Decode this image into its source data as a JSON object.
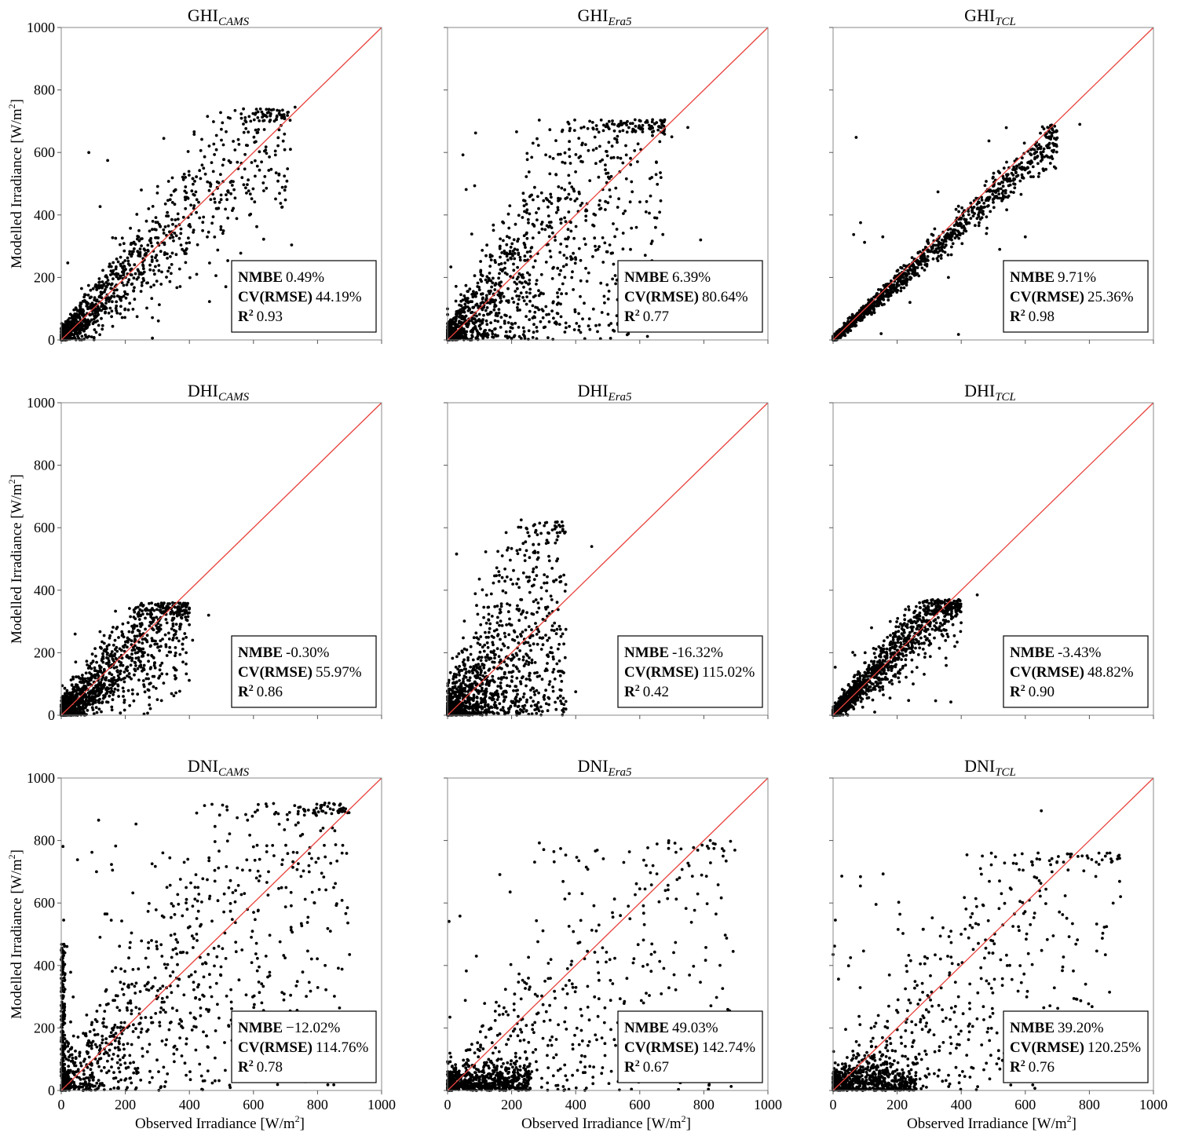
{
  "chart_data": [
    {
      "type": "scatter",
      "title_main": "GHI",
      "title_sub": "CAMS",
      "ylabel_pre": "Modelled Irradiance [W/m",
      "xlabel_pre": "",
      "ylabel_show": true,
      "xlabel_show": false,
      "xlim": [
        0,
        1000
      ],
      "ylim": [
        0,
        1000
      ],
      "ticks": [
        "0",
        "200",
        "400",
        "600",
        "800",
        "1000"
      ],
      "show_xticks": false,
      "show_yticks": true,
      "stats": {
        "nmbe_label": "NMBE",
        "nmbe": "0.49%",
        "cv_label": "CV(RMSE)",
        "cv": "44.19%",
        "r2_label": "R",
        "r2": "0.93"
      },
      "pattern": {
        "seed": 11,
        "n": 1100,
        "xmax": 720,
        "slope": 1.0,
        "noise": 0.22,
        "const": 18,
        "cap": 740,
        "outliers": 12
      },
      "points": [
        [
          320,
          645
        ],
        [
          730,
          745
        ],
        [
          700,
          490
        ],
        [
          520,
          390
        ],
        [
          460,
          345
        ],
        [
          300,
          470
        ],
        [
          250,
          480
        ]
      ]
    },
    {
      "type": "scatter",
      "title_main": "GHI",
      "title_sub": "Era5",
      "ylabel_show": false,
      "xlabel_show": false,
      "xlim": [
        0,
        1000
      ],
      "ylim": [
        0,
        1000
      ],
      "ticks": [
        "0",
        "200",
        "400",
        "600",
        "800",
        "1000"
      ],
      "show_xticks": false,
      "show_yticks": false,
      "stats": {
        "nmbe_label": "NMBE",
        "nmbe": "6.39%",
        "cv_label": "CV(RMSE)",
        "cv": "80.64%",
        "r2_label": "R",
        "r2": "0.77"
      },
      "pattern": {
        "seed": 22,
        "n": 1300,
        "xmax": 680,
        "slope": 0.95,
        "noise": 0.55,
        "const": 30,
        "cap": 705,
        "outliers": 20
      },
      "points": [
        [
          640,
          705
        ],
        [
          750,
          680
        ],
        [
          700,
          650
        ],
        [
          790,
          320
        ],
        [
          350,
          50
        ],
        [
          440,
          45
        ],
        [
          380,
          610
        ]
      ]
    },
    {
      "type": "scatter",
      "title_main": "GHI",
      "title_sub": "TCL",
      "ylabel_show": false,
      "xlabel_show": false,
      "xlim": [
        0,
        1000
      ],
      "ylim": [
        0,
        1000
      ],
      "ticks": [
        "0",
        "200",
        "400",
        "600",
        "800",
        "1000"
      ],
      "show_xticks": false,
      "show_yticks": false,
      "stats": {
        "nmbe_label": "NMBE",
        "nmbe": "9.71%",
        "cv_label": "CV(RMSE)",
        "cv": "25.36%",
        "r2_label": "R",
        "r2": "0.98"
      },
      "pattern": {
        "seed": 33,
        "n": 1200,
        "xmax": 700,
        "slope": 0.92,
        "noise": 0.05,
        "const": 6,
        "cap": 690,
        "outliers": 12
      },
      "points": [
        [
          770,
          690
        ],
        [
          520,
          290
        ],
        [
          600,
          330
        ],
        [
          400,
          390
        ],
        [
          150,
          20
        ],
        [
          240,
          120
        ],
        [
          360,
          200
        ]
      ]
    },
    {
      "type": "scatter",
      "title_main": "DHI",
      "title_sub": "CAMS",
      "ylabel_pre": "Modelled Irradiance [W/m",
      "ylabel_show": true,
      "xlabel_show": false,
      "xlim": [
        0,
        1000
      ],
      "ylim": [
        0,
        1000
      ],
      "ticks": [
        "0",
        "200",
        "400",
        "600",
        "800",
        "1000"
      ],
      "show_xticks": false,
      "show_yticks": true,
      "stats": {
        "nmbe_label": "NMBE",
        "nmbe": "-0.30%",
        "cv_label": "CV(RMSE)",
        "cv": "55.97%",
        "r2_label": "R",
        "r2": "0.86"
      },
      "pattern": {
        "seed": 44,
        "n": 1300,
        "xmax": 400,
        "slope": 0.9,
        "noise": 0.3,
        "const": 20,
        "cap": 360,
        "outliers": 8
      },
      "points": [
        [
          460,
          320
        ],
        [
          410,
          240
        ],
        [
          390,
          200
        ],
        [
          380,
          170
        ],
        [
          300,
          50
        ]
      ]
    },
    {
      "type": "scatter",
      "title_main": "DHI",
      "title_sub": "Era5",
      "ylabel_show": false,
      "xlabel_show": false,
      "xlim": [
        0,
        1000
      ],
      "ylim": [
        0,
        1000
      ],
      "ticks": [
        "0",
        "200",
        "400",
        "600",
        "800",
        "1000"
      ],
      "show_xticks": false,
      "show_yticks": false,
      "stats": {
        "nmbe_label": "NMBE",
        "nmbe": "-16.32%",
        "cv_label": "CV(RMSE)",
        "cv": "115.02%",
        "r2_label": "R",
        "r2": "0.42"
      },
      "pattern": {
        "seed": 55,
        "n": 1300,
        "xmax": 370,
        "slope": 0.9,
        "noise": 0.75,
        "const": 40,
        "cap": 620,
        "outliers": 10
      },
      "points": [
        [
          230,
          625
        ],
        [
          450,
          540
        ],
        [
          310,
          560
        ],
        [
          200,
          110
        ],
        [
          400,
          75
        ],
        [
          355,
          80
        ]
      ]
    },
    {
      "type": "scatter",
      "title_main": "DHI",
      "title_sub": "TCL",
      "ylabel_show": false,
      "xlabel_show": false,
      "xlim": [
        0,
        1000
      ],
      "ylim": [
        0,
        1000
      ],
      "ticks": [
        "0",
        "200",
        "400",
        "600",
        "800",
        "1000"
      ],
      "show_xticks": false,
      "show_yticks": false,
      "stats": {
        "nmbe_label": "NMBE",
        "nmbe": "-3.43%",
        "cv_label": "CV(RMSE)",
        "cv": "48.82%",
        "r2_label": "R",
        "r2": "0.90"
      },
      "pattern": {
        "seed": 66,
        "n": 1300,
        "xmax": 400,
        "slope": 1.05,
        "noise": 0.18,
        "const": 10,
        "cap": 370,
        "outliers": 10
      },
      "points": [
        [
          450,
          385
        ],
        [
          360,
          300
        ],
        [
          380,
          220
        ],
        [
          130,
          10
        ],
        [
          250,
          100
        ],
        [
          100,
          200
        ],
        [
          120,
          280
        ]
      ]
    },
    {
      "type": "scatter",
      "title_main": "DNI",
      "title_sub": "CAMS",
      "ylabel_pre": "Modelled Irradiance [W/m",
      "xlabel_pre": "Observed Irradiance [W/m",
      "ylabel_show": true,
      "xlabel_show": true,
      "xlim": [
        0,
        1000
      ],
      "ylim": [
        0,
        1000
      ],
      "ticks": [
        "0",
        "200",
        "400",
        "600",
        "800",
        "1000"
      ],
      "show_xticks": true,
      "show_yticks": true,
      "stats": {
        "nmbe_label": "NMBE",
        "nmbe": "−12.02%",
        "cv_label": "CV(RMSE)",
        "cv": "114.76%",
        "r2_label": "R",
        "r2": "0.78"
      },
      "pattern": {
        "seed": 77,
        "n": 1000,
        "xmax": 900,
        "slope": 0.95,
        "noise": 0.35,
        "const": 60,
        "cap": 920,
        "outliers": 120,
        "zerocol": true
      },
      "points": [
        [
          480,
          845
        ],
        [
          670,
          890
        ],
        [
          110,
          700
        ],
        [
          160,
          705
        ],
        [
          330,
          650
        ],
        [
          395,
          740
        ],
        [
          600,
          780
        ],
        [
          900,
          435
        ]
      ]
    },
    {
      "type": "scatter",
      "title_main": "DNI",
      "title_sub": "Era5",
      "xlabel_pre": "Observed Irradiance [W/m",
      "ylabel_show": false,
      "xlabel_show": true,
      "xlim": [
        0,
        1000
      ],
      "ylim": [
        0,
        1000
      ],
      "ticks": [
        "0",
        "200",
        "400",
        "600",
        "800",
        "1000"
      ],
      "show_xticks": true,
      "show_yticks": false,
      "stats": {
        "nmbe_label": "NMBE",
        "nmbe": "49.03%",
        "cv_label": "CV(RMSE)",
        "cv": "142.74%",
        "r2_label": "R",
        "r2": "0.67"
      },
      "pattern": {
        "seed": 88,
        "n": 1000,
        "xmax": 900,
        "slope": 0.65,
        "noise": 0.5,
        "const": 20,
        "cap": 800,
        "outliers": 60,
        "lowcloud": true
      },
      "points": [
        [
          90,
          430
        ],
        [
          380,
          630
        ],
        [
          420,
          630
        ],
        [
          550,
          730
        ],
        [
          620,
          720
        ],
        [
          680,
          640
        ],
        [
          820,
          800
        ],
        [
          860,
          750
        ]
      ]
    },
    {
      "type": "scatter",
      "title_main": "DNI",
      "title_sub": "TCL",
      "xlabel_pre": "Observed Irradiance [W/m",
      "ylabel_show": false,
      "xlabel_show": true,
      "xlim": [
        0,
        1000
      ],
      "ylim": [
        0,
        1000
      ],
      "ticks": [
        "0",
        "200",
        "400",
        "600",
        "800",
        "1000"
      ],
      "show_xticks": true,
      "show_yticks": false,
      "stats": {
        "nmbe_label": "NMBE",
        "nmbe": "39.20%",
        "cv_label": "CV(RMSE)",
        "cv": "120.25%",
        "r2_label": "R",
        "r2": "0.76"
      },
      "pattern": {
        "seed": 99,
        "n": 1000,
        "xmax": 900,
        "slope": 0.7,
        "noise": 0.45,
        "const": 20,
        "cap": 760,
        "outliers": 60,
        "lowcloud": true
      },
      "points": [
        [
          650,
          895
        ],
        [
          640,
          760
        ],
        [
          530,
          530
        ],
        [
          460,
          710
        ],
        [
          0,
          435
        ],
        [
          850,
          750
        ],
        [
          890,
          750
        ]
      ]
    }
  ],
  "ylabel_super": "2",
  "ylabel_post": "]",
  "r2_super": "2"
}
